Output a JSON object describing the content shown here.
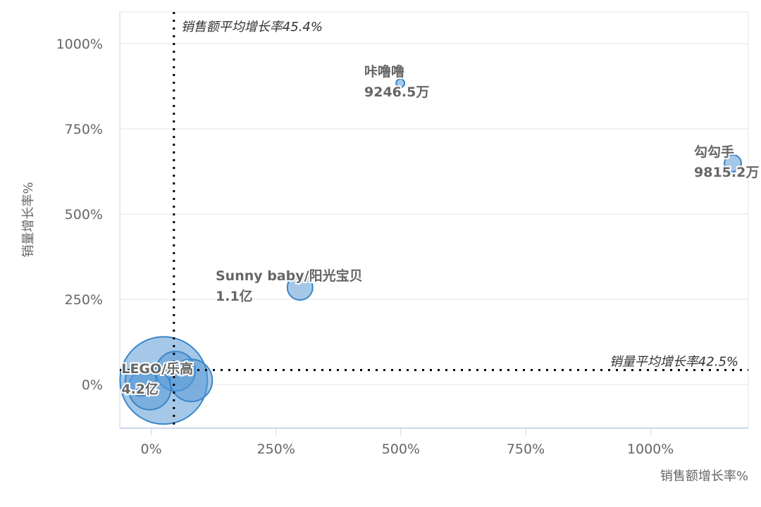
{
  "chart_data": {
    "type": "scatter",
    "subtype": "bubble",
    "xlabel": "销售额增长率%",
    "ylabel": "销量增长率%",
    "xlim": [
      -63,
      1196
    ],
    "ylim": [
      -128,
      1093
    ],
    "x_ticks": [
      0,
      250,
      500,
      750,
      1000
    ],
    "x_tick_labels": [
      "0%",
      "250%",
      "500%",
      "750%",
      "1000%"
    ],
    "y_ticks": [
      0,
      250,
      500,
      750,
      1000
    ],
    "y_tick_labels": [
      "0%",
      "250%",
      "500%",
      "750%",
      "1000%"
    ],
    "grid": "horizontal",
    "bubble_color": "#5b9bd5",
    "points": [
      {
        "name": "LEGO/乐高",
        "value_label": "4.2亿",
        "x": 25,
        "y": 12,
        "size": 62
      },
      {
        "name": "",
        "value_label": "",
        "x": 49,
        "y": 39,
        "size": 28
      },
      {
        "name": "",
        "value_label": "",
        "x": 80,
        "y": 12,
        "size": 30
      },
      {
        "name": "",
        "value_label": "",
        "x": -3,
        "y": -12,
        "size": 30
      },
      {
        "name": "",
        "value_label": "",
        "x": -21,
        "y": 12,
        "size": 22
      },
      {
        "name": "Sunny baby/阳光宝贝",
        "value_label": "1.1亿",
        "x": 298,
        "y": 285,
        "size": 18
      },
      {
        "name": "咔噜噜",
        "value_label": "9246.5万",
        "x": 499,
        "y": 884,
        "size": 6
      },
      {
        "name": "勾勾手",
        "value_label": "9815.2万",
        "x": 1165,
        "y": 649,
        "size": 12
      }
    ],
    "reference_lines": [
      {
        "axis": "x",
        "value": 45.4,
        "label": "销售额平均增长率45.4%"
      },
      {
        "axis": "y",
        "value": 42.5,
        "label": "销量平均增长率42.5%"
      }
    ]
  }
}
